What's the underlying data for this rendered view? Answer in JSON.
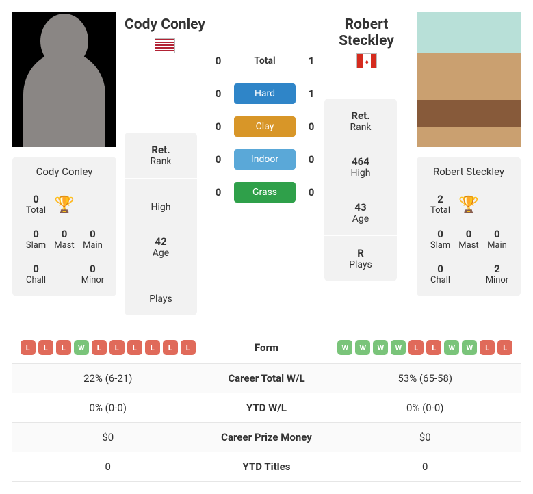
{
  "player1": {
    "name": "Cody Conley",
    "flag": "us",
    "stats": {
      "total": "0",
      "slam": "0",
      "mast": "0",
      "main": "0",
      "chall": "0",
      "minor": "0"
    },
    "rank": {
      "ret": "Ret.",
      "retLbl": "Rank",
      "high": "",
      "highLbl": "High",
      "age": "42",
      "ageLbl": "Age",
      "plays": "",
      "playsLbl": "Plays"
    }
  },
  "player2": {
    "name": "Robert Steckley",
    "flag": "ca",
    "stats": {
      "total": "2",
      "slam": "0",
      "mast": "0",
      "main": "0",
      "chall": "0",
      "minor": "2"
    },
    "rank": {
      "ret": "Ret.",
      "retLbl": "Rank",
      "high": "464",
      "highLbl": "High",
      "age": "43",
      "ageLbl": "Age",
      "plays": "R",
      "playsLbl": "Plays"
    }
  },
  "h2h": {
    "total": {
      "p1": "0",
      "label": "Total",
      "p2": "1"
    },
    "hard": {
      "p1": "0",
      "label": "Hard",
      "p2": "1"
    },
    "clay": {
      "p1": "0",
      "label": "Clay",
      "p2": "0"
    },
    "indoor": {
      "p1": "0",
      "label": "Indoor",
      "p2": "0"
    },
    "grass": {
      "p1": "0",
      "label": "Grass",
      "p2": "0"
    }
  },
  "labels": {
    "total": "Total",
    "slam": "Slam",
    "mast": "Mast",
    "main": "Main",
    "chall": "Chall",
    "minor": "Minor"
  },
  "form": {
    "p1": [
      "L",
      "L",
      "L",
      "W",
      "L",
      "L",
      "L",
      "L",
      "L",
      "L"
    ],
    "p2": [
      "W",
      "W",
      "W",
      "W",
      "L",
      "L",
      "W",
      "W",
      "L",
      "L"
    ]
  },
  "rows": [
    {
      "p1_form": true,
      "label": "Form",
      "p2_form": true
    },
    {
      "p1": "22% (6-21)",
      "label": "Career Total W/L",
      "p2": "53% (65-58)"
    },
    {
      "p1": "0% (0-0)",
      "label": "YTD W/L",
      "p2": "0% (0-0)"
    },
    {
      "p1": "$0",
      "label": "Career Prize Money",
      "p2": "$0"
    },
    {
      "p1": "0",
      "label": "YTD Titles",
      "p2": "0"
    }
  ]
}
